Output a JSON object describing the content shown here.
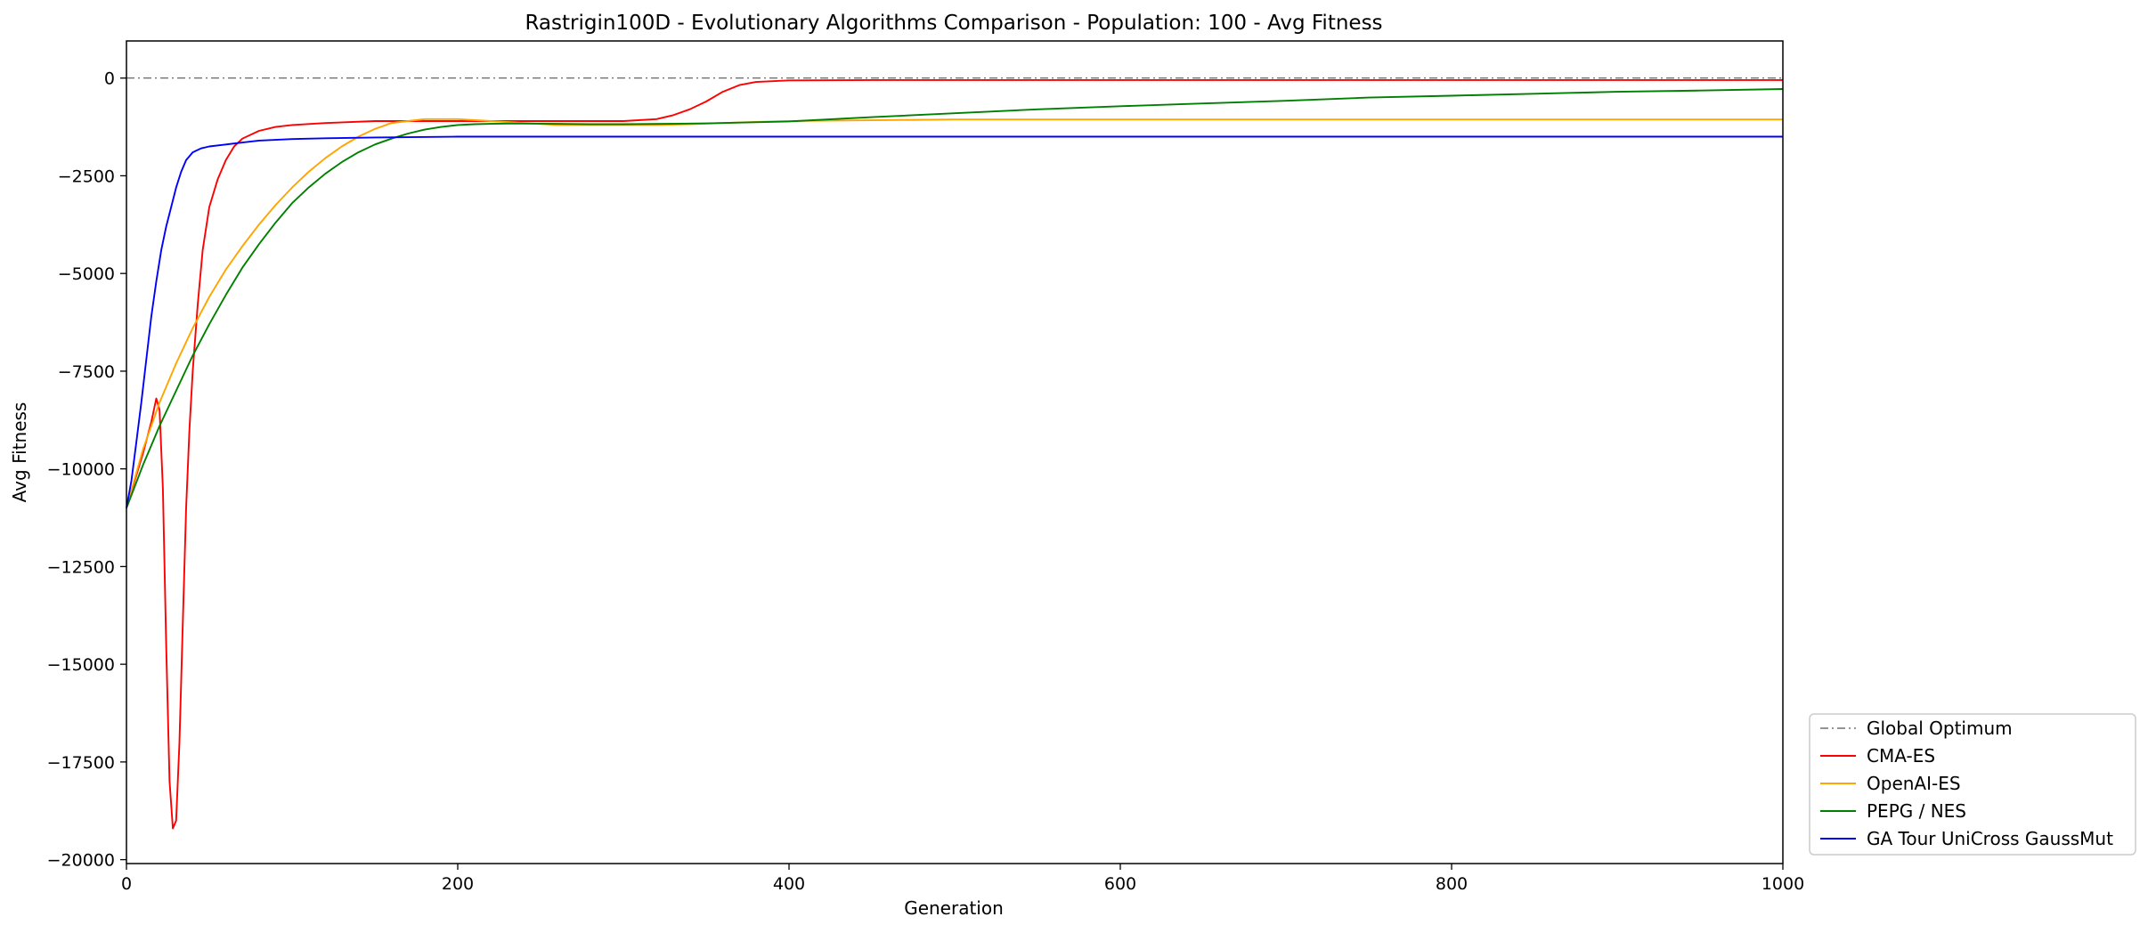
{
  "chart_data": {
    "type": "line",
    "title": "Rastrigin100D - Evolutionary Algorithms Comparison - Population: 100 - Avg Fitness",
    "xlabel": "Generation",
    "ylabel": "Avg Fitness",
    "xlim": [
      0,
      1000
    ],
    "ylim": [
      -20100,
      950
    ],
    "xticks": [
      0,
      200,
      400,
      600,
      800,
      1000
    ],
    "xtick_labels": [
      "0",
      "200",
      "400",
      "600",
      "800",
      "1000"
    ],
    "yticks": [
      0,
      -2500,
      -5000,
      -7500,
      -10000,
      -12500,
      -15000,
      -17500,
      -20000
    ],
    "ytick_labels": [
      "0",
      "−2500",
      "−5000",
      "−7500",
      "−10000",
      "−12500",
      "−15000",
      "−17500",
      "−20000"
    ],
    "grid": false,
    "legend_placement": "outside-bottom-right",
    "series": [
      {
        "name": "Global Optimum",
        "color": "#555555",
        "style": "dashdot",
        "x": [
          0,
          1000
        ],
        "y": [
          0,
          0
        ]
      },
      {
        "name": "CMA-ES",
        "color": "#ff0000",
        "style": "solid",
        "x": [
          0,
          5,
          10,
          15,
          18,
          20,
          22,
          24,
          26,
          28,
          30,
          32,
          34,
          36,
          38,
          40,
          43,
          46,
          50,
          55,
          60,
          65,
          70,
          80,
          90,
          100,
          120,
          150,
          200,
          250,
          300,
          320,
          330,
          340,
          350,
          360,
          370,
          380,
          400,
          450,
          500,
          600,
          700,
          800,
          900,
          1000
        ],
        "y": [
          -11000,
          -10300,
          -9600,
          -8800,
          -8200,
          -8500,
          -10500,
          -14500,
          -18000,
          -19200,
          -19000,
          -17000,
          -14000,
          -11000,
          -9000,
          -7500,
          -5800,
          -4400,
          -3300,
          -2600,
          -2100,
          -1750,
          -1550,
          -1350,
          -1250,
          -1200,
          -1150,
          -1100,
          -1100,
          -1100,
          -1100,
          -1050,
          -950,
          -800,
          -600,
          -350,
          -180,
          -100,
          -60,
          -50,
          -50,
          -50,
          -50,
          -50,
          -50,
          -50
        ]
      },
      {
        "name": "OpenAI-ES",
        "color": "#ffa500",
        "style": "solid",
        "x": [
          0,
          10,
          20,
          30,
          40,
          50,
          60,
          70,
          80,
          90,
          100,
          110,
          120,
          130,
          140,
          150,
          160,
          170,
          180,
          190,
          200,
          220,
          240,
          260,
          280,
          300,
          320,
          340,
          360,
          380,
          400,
          450,
          500,
          600,
          700,
          800,
          900,
          1000
        ],
        "y": [
          -11000,
          -9500,
          -8300,
          -7300,
          -6400,
          -5600,
          -4900,
          -4300,
          -3750,
          -3250,
          -2800,
          -2400,
          -2050,
          -1750,
          -1500,
          -1300,
          -1150,
          -1100,
          -1050,
          -1050,
          -1050,
          -1100,
          -1150,
          -1200,
          -1200,
          -1200,
          -1200,
          -1180,
          -1150,
          -1120,
          -1100,
          -1080,
          -1060,
          -1060,
          -1060,
          -1060,
          -1060,
          -1060
        ]
      },
      {
        "name": "PEPG / NES",
        "color": "#008000",
        "style": "solid",
        "x": [
          0,
          10,
          20,
          30,
          40,
          50,
          60,
          70,
          80,
          90,
          100,
          110,
          120,
          130,
          140,
          150,
          160,
          170,
          180,
          190,
          200,
          210,
          220,
          230,
          240,
          260,
          280,
          300,
          350,
          400,
          450,
          500,
          550,
          600,
          650,
          700,
          750,
          800,
          850,
          900,
          950,
          1000
        ],
        "y": [
          -11000,
          -9900,
          -8900,
          -8000,
          -7100,
          -6300,
          -5550,
          -4850,
          -4250,
          -3700,
          -3200,
          -2800,
          -2450,
          -2150,
          -1900,
          -1700,
          -1550,
          -1420,
          -1320,
          -1250,
          -1200,
          -1180,
          -1170,
          -1165,
          -1165,
          -1170,
          -1180,
          -1180,
          -1160,
          -1110,
          -1000,
          -900,
          -800,
          -720,
          -650,
          -580,
          -500,
          -450,
          -400,
          -350,
          -320,
          -280
        ]
      },
      {
        "name": "GA Tour UniCross GaussMut",
        "color": "#0000ff",
        "style": "solid",
        "x": [
          0,
          3,
          6,
          9,
          12,
          15,
          18,
          21,
          24,
          27,
          30,
          33,
          36,
          40,
          45,
          50,
          60,
          70,
          80,
          90,
          100,
          120,
          150,
          200,
          300,
          400,
          500,
          600,
          700,
          800,
          900,
          1000
        ],
        "y": [
          -11000,
          -10300,
          -9300,
          -8300,
          -7200,
          -6100,
          -5200,
          -4400,
          -3800,
          -3300,
          -2800,
          -2400,
          -2100,
          -1900,
          -1800,
          -1750,
          -1700,
          -1650,
          -1600,
          -1580,
          -1560,
          -1540,
          -1520,
          -1500,
          -1500,
          -1500,
          -1500,
          -1500,
          -1500,
          -1500,
          -1500,
          -1500
        ]
      }
    ]
  }
}
